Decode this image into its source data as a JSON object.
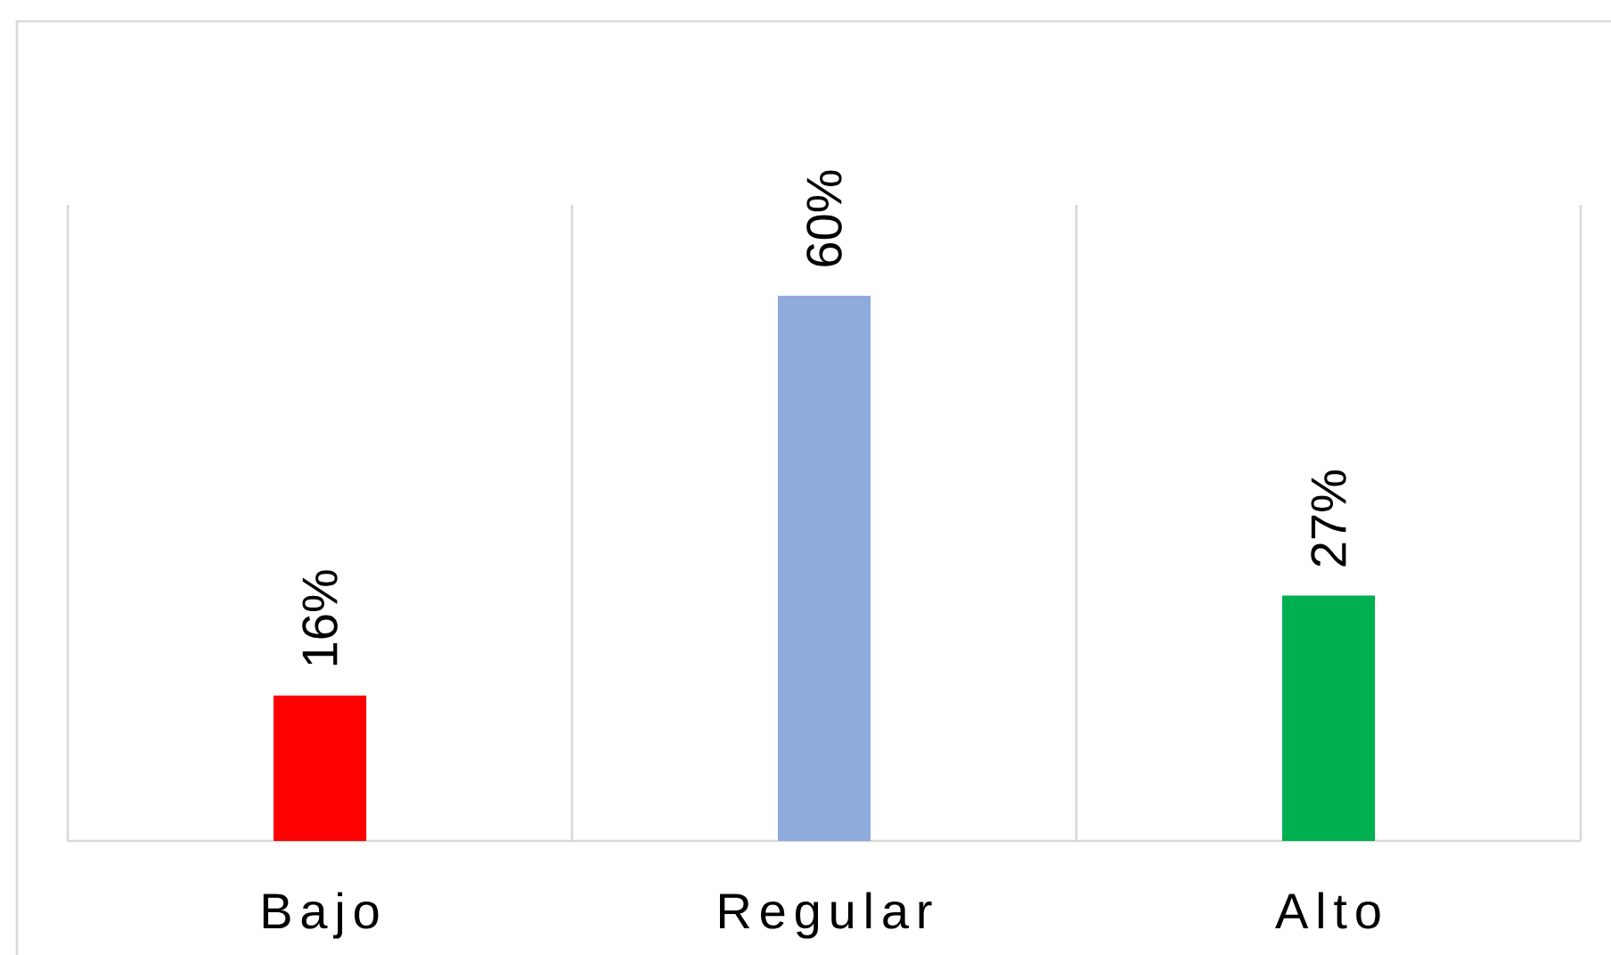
{
  "chart_data": {
    "type": "bar",
    "categories": [
      "Bajo",
      "Regular",
      "Alto"
    ],
    "values": [
      16,
      60,
      27
    ],
    "colors": [
      "#ff0000",
      "#8faadc",
      "#00b050"
    ],
    "value_labels": [
      "16%",
      "60%",
      "27%"
    ],
    "ylim": [
      0,
      70
    ],
    "tick_labels": "x",
    "grid": "x"
  }
}
